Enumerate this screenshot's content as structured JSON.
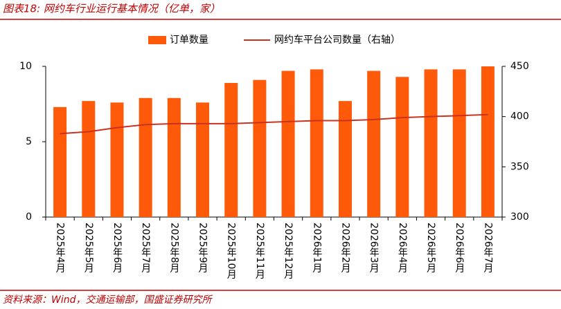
{
  "chart_data": {
    "type": "bar_line",
    "title": "图表18:  网约车行业运行基本情况（亿单，家）",
    "source": "资料来源：Wind，交通运输部，国盛证券研究所",
    "categories": [
      "2025年4月",
      "2025年5月",
      "2025年6月",
      "2025年7月",
      "2025年8月",
      "2025年9月",
      "2025年10月",
      "2025年11月",
      "2025年12月",
      "2026年1月",
      "2026年2月",
      "2026年3月",
      "2026年4月",
      "2026年5月",
      "2026年6月",
      "2026年7月"
    ],
    "series": [
      {
        "name": "订单数量",
        "type": "bar",
        "color": "#ff5a0a",
        "values": [
          7.3,
          7.7,
          7.6,
          7.9,
          7.9,
          7.6,
          8.9,
          9.1,
          9.7,
          9.8,
          7.7,
          9.7,
          9.3,
          9.8,
          9.8,
          10.0
        ]
      },
      {
        "name": "网约车平台公司数量（右轴）",
        "type": "line",
        "axis": "y2",
        "color": "#c8321e",
        "values": [
          383,
          385,
          389,
          392,
          393,
          393,
          393,
          394,
          395,
          396,
          396,
          397,
          399,
          400,
          401,
          402
        ]
      }
    ],
    "ylim": [
      0,
      10
    ],
    "yticks": [
      0,
      5,
      10
    ],
    "y2lim": [
      300,
      450
    ],
    "y2ticks": [
      300,
      350,
      400,
      450
    ],
    "legend": "top"
  }
}
